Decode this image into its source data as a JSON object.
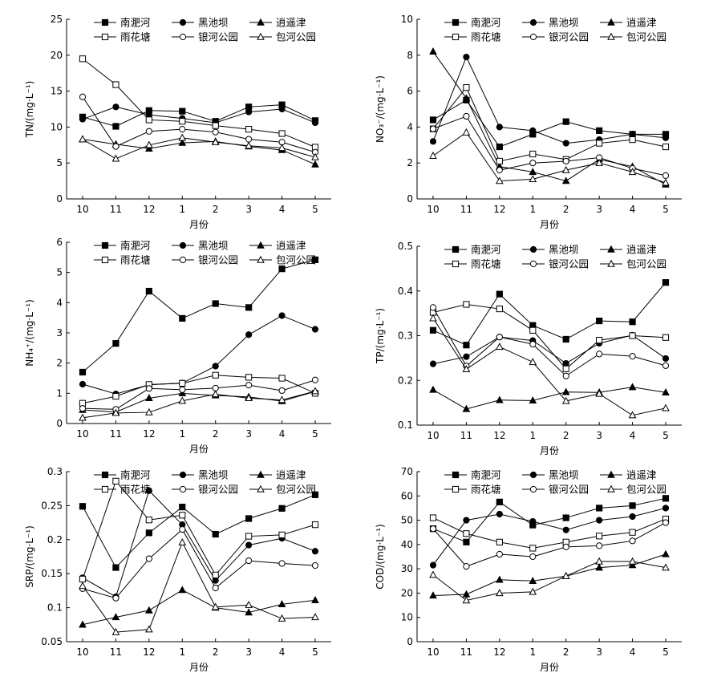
{
  "figure": {
    "legend": [
      "南淝河",
      "黑池坝",
      "逍遥津",
      "雨花塘",
      "银河公园",
      "包河公园"
    ]
  },
  "chart_data": [
    {
      "type": "line",
      "ylabel": "TN/(mg·L⁻¹)",
      "xlabel": "月份",
      "categories": [
        "10",
        "11",
        "12",
        "1",
        "2",
        "3",
        "4",
        "5"
      ],
      "ylim": [
        0,
        25
      ],
      "yticks": [
        0,
        5,
        10,
        15,
        20,
        25
      ],
      "series": [
        {
          "name": "南淝河",
          "values": [
            11.4,
            10.1,
            12.3,
            12.2,
            10.8,
            12.8,
            13.1,
            10.9
          ]
        },
        {
          "name": "黑池坝",
          "values": [
            11.1,
            12.8,
            11.7,
            11.2,
            10.6,
            12.1,
            12.5,
            10.6
          ]
        },
        {
          "name": "逍遥津",
          "values": [
            8.3,
            7.6,
            7.0,
            7.8,
            8.0,
            7.3,
            6.8,
            4.8
          ]
        },
        {
          "name": "雨花塘",
          "values": [
            19.5,
            15.9,
            11.0,
            10.8,
            10.2,
            9.7,
            9.1,
            7.2
          ]
        },
        {
          "name": "银河公园",
          "values": [
            14.2,
            7.3,
            9.4,
            9.7,
            9.3,
            8.3,
            7.9,
            6.5
          ]
        },
        {
          "name": "包河公园",
          "values": [
            8.3,
            5.6,
            7.5,
            8.5,
            7.9,
            7.4,
            7.1,
            5.8
          ]
        }
      ]
    },
    {
      "type": "line",
      "ylabel": "NO₃⁻/(mg·L⁻¹)",
      "xlabel": "月份",
      "categories": [
        "10",
        "11",
        "12",
        "1",
        "2",
        "3",
        "4",
        "5"
      ],
      "ylim": [
        0,
        10
      ],
      "yticks": [
        0,
        2,
        4,
        6,
        8,
        10
      ],
      "series": [
        {
          "name": "南淝河",
          "values": [
            4.4,
            5.5,
            2.9,
            3.6,
            4.3,
            3.8,
            3.6,
            3.6
          ]
        },
        {
          "name": "黑池坝",
          "values": [
            3.2,
            7.9,
            4.0,
            3.8,
            3.1,
            3.3,
            3.6,
            3.4
          ]
        },
        {
          "name": "逍遥津",
          "values": [
            8.2,
            5.6,
            1.8,
            1.5,
            1.0,
            2.2,
            1.8,
            0.8
          ]
        },
        {
          "name": "雨花塘",
          "values": [
            3.9,
            6.2,
            2.1,
            2.5,
            2.2,
            3.1,
            3.3,
            2.9
          ]
        },
        {
          "name": "银河公园",
          "values": [
            3.9,
            4.6,
            1.6,
            2.0,
            2.1,
            2.3,
            1.7,
            1.3
          ]
        },
        {
          "name": "包河公园",
          "values": [
            2.4,
            3.7,
            1.0,
            1.1,
            1.6,
            2.0,
            1.5,
            0.9
          ]
        }
      ]
    },
    {
      "type": "line",
      "ylabel": "NH₄⁺/(mg·L⁻¹)",
      "xlabel": "月份",
      "categories": [
        "10",
        "11",
        "12",
        "1",
        "2",
        "3",
        "4",
        "5"
      ],
      "ylim": [
        0,
        6
      ],
      "yticks": [
        0,
        1,
        2,
        3,
        4,
        5,
        6
      ],
      "series": [
        {
          "name": "南淝河",
          "values": [
            1.7,
            2.65,
            4.38,
            3.48,
            3.97,
            3.84,
            5.12,
            5.42
          ]
        },
        {
          "name": "黑池坝",
          "values": [
            1.3,
            0.98,
            1.28,
            1.34,
            1.9,
            2.94,
            3.57,
            3.12
          ]
        },
        {
          "name": "逍遥津",
          "values": [
            0.45,
            0.38,
            0.84,
            1.0,
            0.93,
            0.88,
            0.74,
            1.06
          ]
        },
        {
          "name": "雨花塘",
          "values": [
            0.67,
            0.9,
            1.29,
            1.33,
            1.6,
            1.53,
            1.5,
            1.0
          ]
        },
        {
          "name": "银河公园",
          "values": [
            0.5,
            0.47,
            1.16,
            1.12,
            1.17,
            1.27,
            1.09,
            1.44
          ]
        },
        {
          "name": "包河公园",
          "values": [
            0.19,
            0.35,
            0.37,
            0.75,
            0.97,
            0.84,
            0.78,
            1.07
          ]
        }
      ]
    },
    {
      "type": "line",
      "ylabel": "TP/(mg·L⁻¹)",
      "xlabel": "月份",
      "categories": [
        "10",
        "11",
        "12",
        "1",
        "2",
        "3",
        "4",
        "5"
      ],
      "ylim": [
        0.1,
        0.5
      ],
      "yticks": [
        0.1,
        0.2,
        0.3,
        0.4,
        0.5
      ],
      "series": [
        {
          "name": "南淝河",
          "values": [
            0.312,
            0.279,
            0.393,
            0.323,
            0.292,
            0.333,
            0.331,
            0.419
          ]
        },
        {
          "name": "黑池坝",
          "values": [
            0.237,
            0.253,
            0.297,
            0.289,
            0.238,
            0.283,
            0.301,
            0.249
          ]
        },
        {
          "name": "逍遥津",
          "values": [
            0.179,
            0.136,
            0.156,
            0.155,
            0.174,
            0.173,
            0.185,
            0.173
          ]
        },
        {
          "name": "雨花塘",
          "values": [
            0.352,
            0.37,
            0.36,
            0.312,
            0.226,
            0.29,
            0.3,
            0.296
          ]
        },
        {
          "name": "银河公园",
          "values": [
            0.363,
            0.232,
            0.297,
            0.281,
            0.21,
            0.259,
            0.254,
            0.233
          ]
        },
        {
          "name": "包河公园",
          "values": [
            0.339,
            0.225,
            0.275,
            0.241,
            0.154,
            0.17,
            0.122,
            0.138
          ]
        }
      ]
    },
    {
      "type": "line",
      "ylabel": "SRP/(mg·L⁻¹)",
      "xlabel": "月份",
      "categories": [
        "10",
        "11",
        "12",
        "1",
        "2",
        "3",
        "4",
        "5"
      ],
      "ylim": [
        0.05,
        0.3
      ],
      "yticks": [
        0.05,
        0.1,
        0.15,
        0.2,
        0.25,
        0.3
      ],
      "series": [
        {
          "name": "南淝河",
          "values": [
            0.249,
            0.159,
            0.21,
            0.248,
            0.208,
            0.231,
            0.246,
            0.266
          ]
        },
        {
          "name": "黑池坝",
          "values": [
            0.144,
            0.116,
            0.272,
            0.222,
            0.14,
            0.192,
            0.202,
            0.183
          ]
        },
        {
          "name": "逍遥津",
          "values": [
            0.075,
            0.086,
            0.096,
            0.126,
            0.1,
            0.093,
            0.105,
            0.111
          ]
        },
        {
          "name": "雨花塘",
          "values": [
            0.142,
            0.286,
            0.229,
            0.236,
            0.148,
            0.205,
            0.207,
            0.222
          ]
        },
        {
          "name": "银河公园",
          "values": [
            0.128,
            0.114,
            0.172,
            0.215,
            0.129,
            0.169,
            0.165,
            0.162
          ]
        },
        {
          "name": "包河公园",
          "values": [
            0.132,
            0.064,
            0.068,
            0.196,
            0.101,
            0.104,
            0.084,
            0.086
          ]
        }
      ]
    },
    {
      "type": "line",
      "ylabel": "COD/(mg·L⁻¹)",
      "xlabel": "月份",
      "categories": [
        "10",
        "11",
        "12",
        "1",
        "2",
        "3",
        "4",
        "5"
      ],
      "ylim": [
        0,
        70
      ],
      "yticks": [
        0,
        10,
        20,
        30,
        40,
        50,
        60,
        70
      ],
      "series": [
        {
          "name": "南淝河",
          "values": [
            46.5,
            41.0,
            57.5,
            48.0,
            51.0,
            55.0,
            56.0,
            59.0
          ]
        },
        {
          "name": "黑池坝",
          "values": [
            31.5,
            50.0,
            52.5,
            49.5,
            46.0,
            50.0,
            51.5,
            55.0
          ]
        },
        {
          "name": "逍遥津",
          "values": [
            19.0,
            19.5,
            25.5,
            25.0,
            27.0,
            30.5,
            31.5,
            36.0
          ]
        },
        {
          "name": "雨花塘",
          "values": [
            51.0,
            44.5,
            41.0,
            38.5,
            41.0,
            43.5,
            45.0,
            50.5
          ]
        },
        {
          "name": "银河公园",
          "values": [
            46.5,
            31.0,
            36.0,
            35.0,
            39.0,
            39.5,
            41.5,
            49.0
          ]
        },
        {
          "name": "包河公园",
          "values": [
            27.5,
            17.0,
            20.0,
            20.5,
            27.0,
            33.0,
            33.0,
            30.5
          ]
        }
      ]
    }
  ]
}
